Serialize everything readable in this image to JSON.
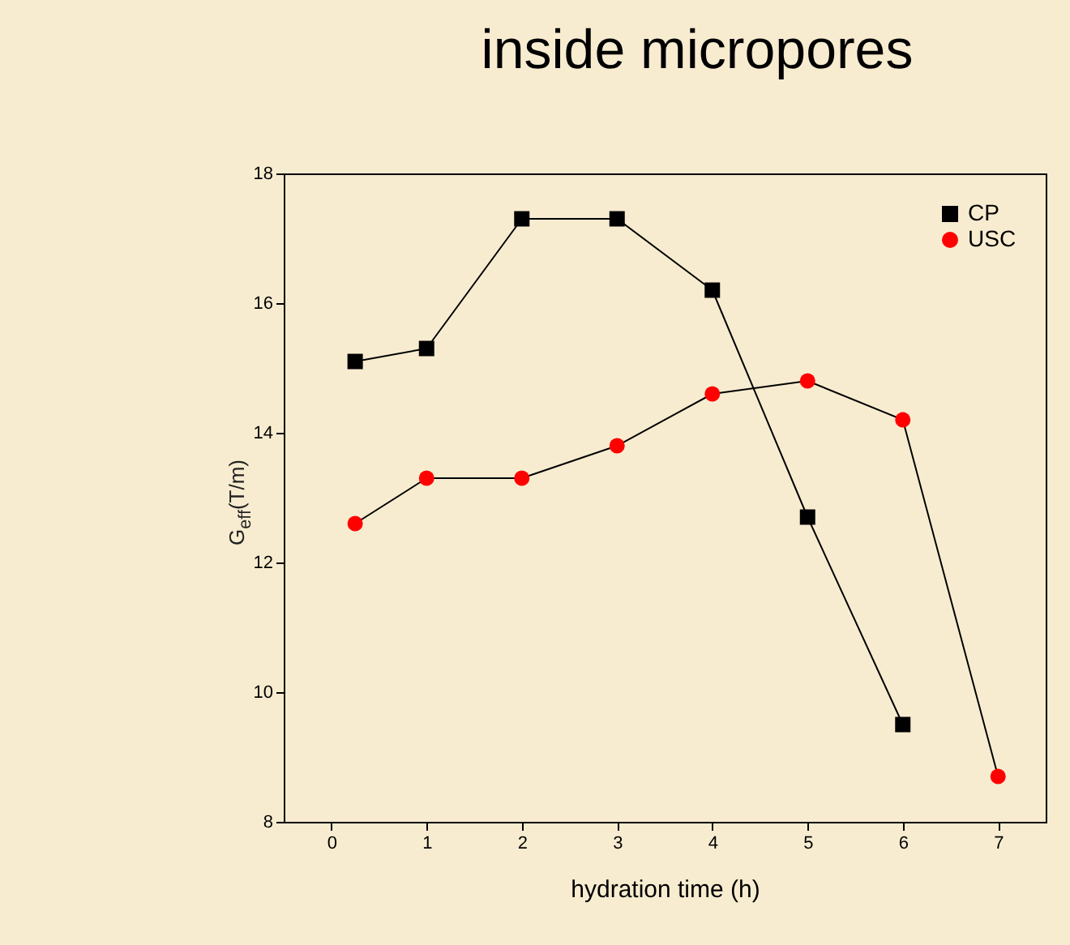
{
  "chart_data": {
    "type": "line",
    "title": "inside micropores",
    "xlabel": "hydration time (h)",
    "ylabel": "G$_{eff}$(T/m)",
    "xlim": [
      -0.5,
      7.5
    ],
    "xticks": [
      0,
      1,
      2,
      3,
      4,
      5,
      6,
      7
    ],
    "ylim": [
      8,
      18
    ],
    "yticks": [
      8,
      10,
      12,
      14,
      16,
      18
    ],
    "grid": false,
    "legend": "top right",
    "line_style": "solid",
    "series": [
      {
        "name": "CP",
        "color": "#000000",
        "marker": "square",
        "x": [
          0.25,
          1,
          2,
          3,
          4,
          5,
          6
        ],
        "values": [
          15.1,
          15.3,
          17.3,
          17.3,
          16.2,
          12.7,
          9.5
        ]
      },
      {
        "name": "USC",
        "color": "#ff0000",
        "marker": "circle",
        "x": [
          0.25,
          1,
          2,
          3,
          4,
          5,
          6,
          7
        ],
        "values": [
          12.6,
          13.3,
          13.3,
          13.8,
          14.6,
          14.8,
          14.2,
          8.7
        ]
      }
    ]
  }
}
